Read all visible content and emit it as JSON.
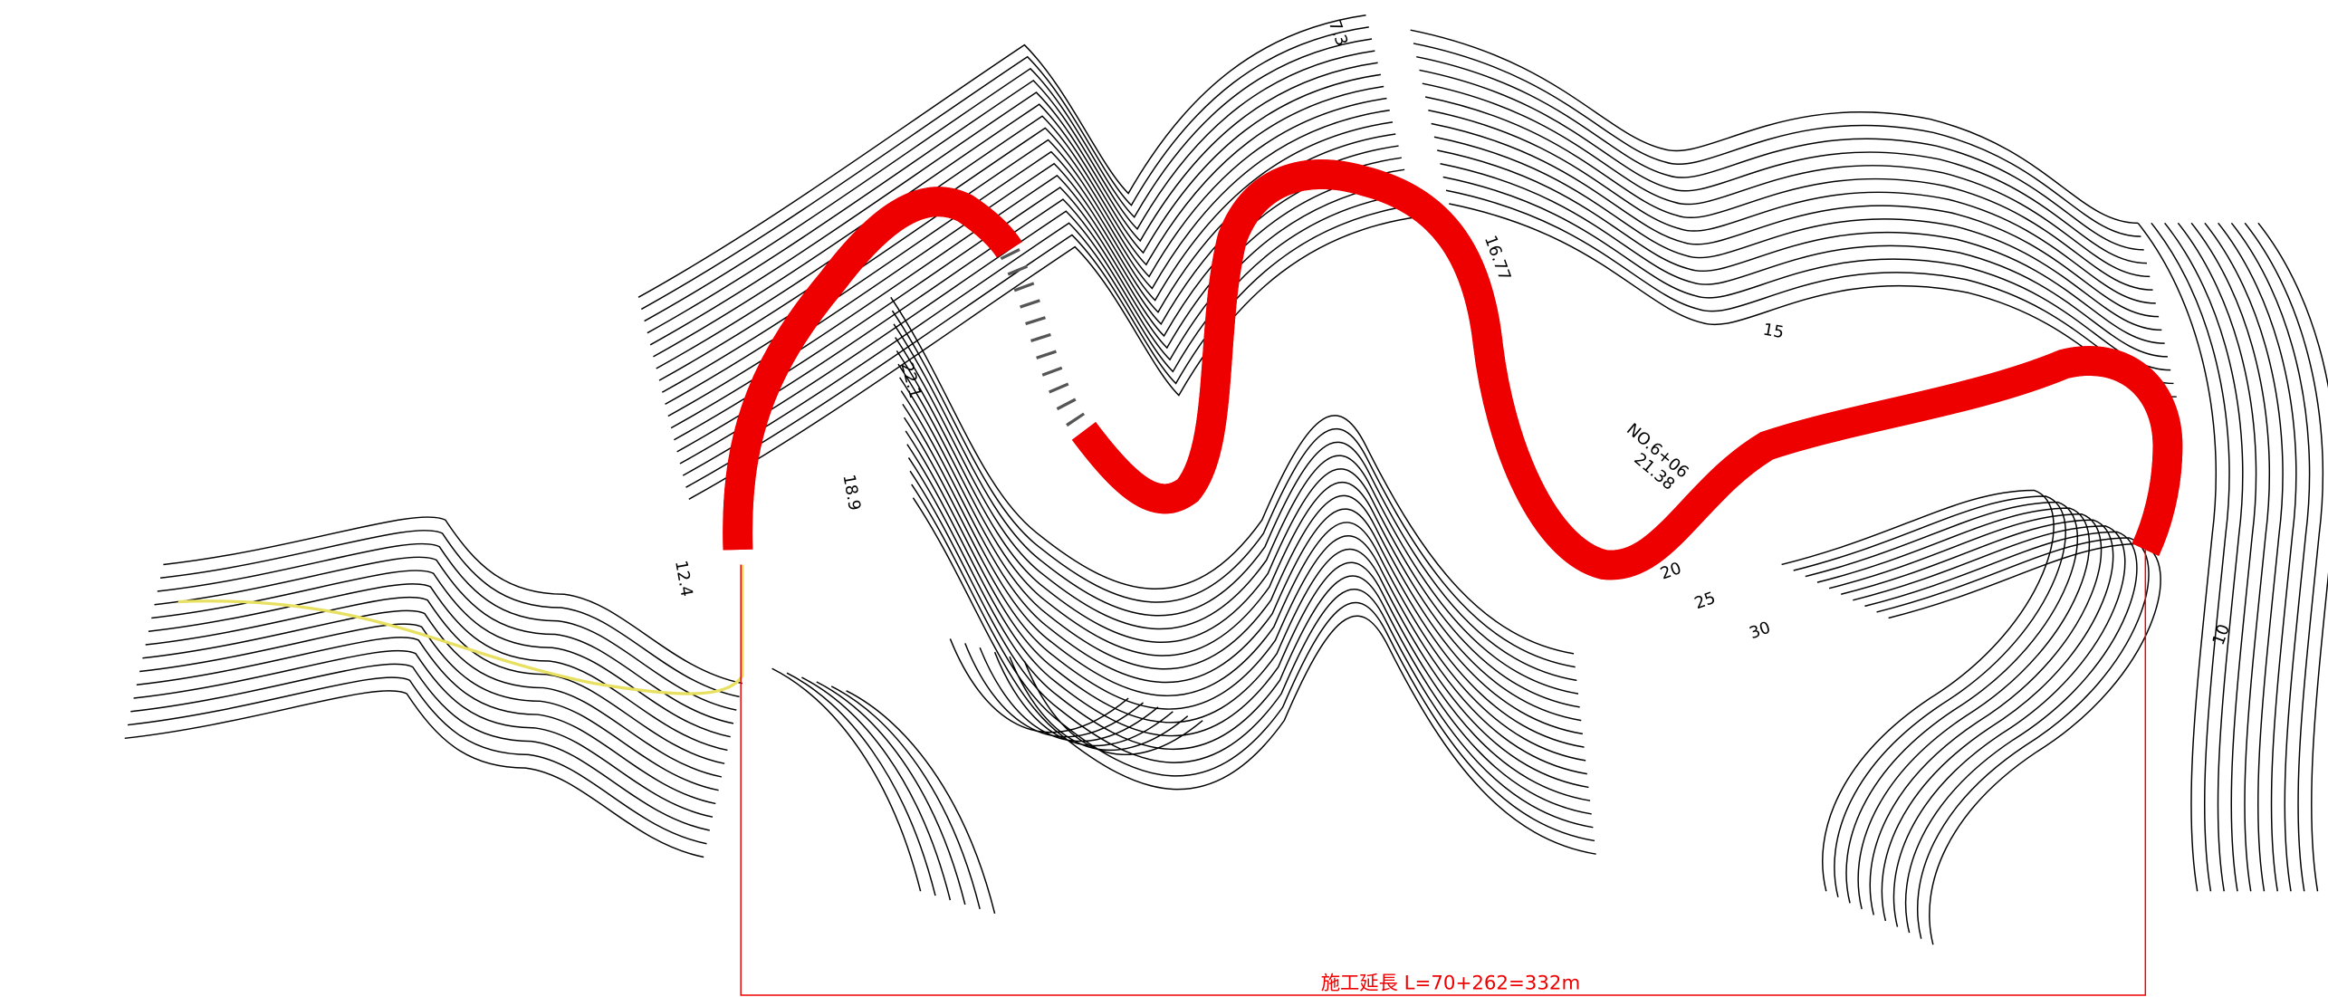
{
  "annotation": "施工延長 L=70+262=332m",
  "labels": [
    {
      "text": "7.3"
    },
    {
      "text": "16.77"
    },
    {
      "text": "NO.6+06"
    },
    {
      "text": "21.38"
    },
    {
      "text": "22.1"
    },
    {
      "text": "18.9"
    },
    {
      "text": "12.4"
    },
    {
      "text": "15"
    },
    {
      "text": "20"
    },
    {
      "text": "25"
    },
    {
      "text": "30"
    },
    {
      "text": "10"
    }
  ]
}
